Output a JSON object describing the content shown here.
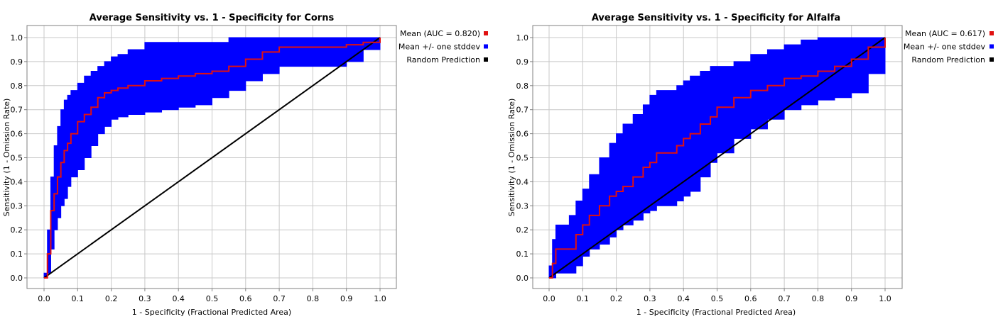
{
  "chart_data": [
    {
      "type": "area",
      "title": "Average Sensitivity vs. 1 - Specificity for Corns",
      "xlabel": "1 - Specificity (Fractional Predicted Area)",
      "ylabel": "Sensitivity (1 - Omission Rate)",
      "xlim": [
        0,
        1
      ],
      "ylim": [
        0,
        1
      ],
      "x_ticks": [
        "0.0",
        "0.1",
        "0.2",
        "0.3",
        "0.4",
        "0.5",
        "0.6",
        "0.7",
        "0.8",
        "0.9",
        "1.0"
      ],
      "y_ticks": [
        "0.0",
        "0.1",
        "0.2",
        "0.3",
        "0.4",
        "0.5",
        "0.6",
        "0.7",
        "0.8",
        "0.9",
        "1.0"
      ],
      "grid": true,
      "legend_position": "right",
      "series": [
        {
          "name": "Mean (AUC = 0.820)",
          "color": "#e01010",
          "x": [
            0.0,
            0.01,
            0.02,
            0.03,
            0.04,
            0.05,
            0.06,
            0.07,
            0.08,
            0.1,
            0.12,
            0.14,
            0.16,
            0.18,
            0.2,
            0.22,
            0.25,
            0.3,
            0.35,
            0.4,
            0.45,
            0.5,
            0.55,
            0.6,
            0.65,
            0.7,
            0.75,
            0.8,
            0.85,
            0.9,
            0.95,
            1.0
          ],
          "y": [
            0.0,
            0.1,
            0.28,
            0.35,
            0.42,
            0.48,
            0.53,
            0.56,
            0.6,
            0.65,
            0.68,
            0.71,
            0.75,
            0.77,
            0.78,
            0.79,
            0.8,
            0.82,
            0.83,
            0.84,
            0.85,
            0.86,
            0.88,
            0.91,
            0.94,
            0.96,
            0.96,
            0.96,
            0.96,
            0.97,
            0.98,
            1.0
          ]
        },
        {
          "name": "Mean +/- one stddev",
          "color": "#0000ff",
          "x": [
            0.0,
            0.01,
            0.02,
            0.03,
            0.04,
            0.05,
            0.06,
            0.07,
            0.08,
            0.1,
            0.12,
            0.14,
            0.16,
            0.18,
            0.2,
            0.22,
            0.25,
            0.3,
            0.35,
            0.4,
            0.45,
            0.5,
            0.55,
            0.6,
            0.65,
            0.7,
            0.75,
            0.8,
            0.85,
            0.9,
            0.95,
            1.0
          ],
          "upper": [
            0.02,
            0.2,
            0.42,
            0.55,
            0.63,
            0.7,
            0.74,
            0.76,
            0.78,
            0.81,
            0.84,
            0.86,
            0.88,
            0.9,
            0.92,
            0.93,
            0.95,
            0.98,
            0.98,
            0.98,
            0.98,
            0.98,
            1.0,
            1.0,
            1.0,
            1.0,
            1.0,
            1.0,
            1.0,
            1.0,
            1.0,
            1.0
          ],
          "lower": [
            0.0,
            0.02,
            0.12,
            0.2,
            0.25,
            0.3,
            0.33,
            0.38,
            0.42,
            0.45,
            0.5,
            0.55,
            0.6,
            0.63,
            0.66,
            0.67,
            0.68,
            0.69,
            0.7,
            0.71,
            0.72,
            0.75,
            0.78,
            0.82,
            0.85,
            0.88,
            0.88,
            0.88,
            0.88,
            0.9,
            0.95,
            1.0
          ]
        },
        {
          "name": "Random Prediction",
          "color": "#000000",
          "x": [
            0,
            1
          ],
          "y": [
            0,
            1
          ]
        }
      ]
    },
    {
      "type": "area",
      "title": "Average Sensitivity vs. 1 - Specificity for Alfalfa",
      "xlabel": "1 - Specificity (Fractional Predicted Area)",
      "ylabel": "Sensitivity (1 - Omission Rate)",
      "xlim": [
        0,
        1
      ],
      "ylim": [
        0,
        1
      ],
      "x_ticks": [
        "0.0",
        "0.1",
        "0.2",
        "0.3",
        "0.4",
        "0.5",
        "0.6",
        "0.7",
        "0.8",
        "0.9",
        "1.0"
      ],
      "y_ticks": [
        "0.0",
        "0.1",
        "0.2",
        "0.3",
        "0.4",
        "0.5",
        "0.6",
        "0.7",
        "0.8",
        "0.9",
        "1.0"
      ],
      "grid": true,
      "legend_position": "right",
      "series": [
        {
          "name": "Mean (AUC = 0.617)",
          "color": "#e01010",
          "x": [
            0.0,
            0.01,
            0.02,
            0.04,
            0.06,
            0.08,
            0.1,
            0.12,
            0.15,
            0.18,
            0.2,
            0.22,
            0.25,
            0.28,
            0.3,
            0.32,
            0.35,
            0.38,
            0.4,
            0.42,
            0.45,
            0.48,
            0.5,
            0.55,
            0.6,
            0.65,
            0.7,
            0.75,
            0.8,
            0.85,
            0.9,
            0.95,
            1.0
          ],
          "y": [
            0.0,
            0.06,
            0.12,
            0.12,
            0.12,
            0.18,
            0.22,
            0.26,
            0.3,
            0.34,
            0.36,
            0.38,
            0.42,
            0.46,
            0.48,
            0.52,
            0.52,
            0.55,
            0.58,
            0.6,
            0.64,
            0.67,
            0.71,
            0.75,
            0.78,
            0.8,
            0.83,
            0.84,
            0.86,
            0.88,
            0.91,
            0.96,
            1.0
          ]
        },
        {
          "name": "Mean +/- one stddev",
          "color": "#0000ff",
          "x": [
            0.0,
            0.01,
            0.02,
            0.04,
            0.06,
            0.08,
            0.1,
            0.12,
            0.15,
            0.18,
            0.2,
            0.22,
            0.25,
            0.28,
            0.3,
            0.32,
            0.35,
            0.38,
            0.4,
            0.42,
            0.45,
            0.48,
            0.5,
            0.55,
            0.6,
            0.65,
            0.7,
            0.75,
            0.8,
            0.85,
            0.9,
            0.95,
            1.0
          ],
          "upper": [
            0.05,
            0.16,
            0.22,
            0.22,
            0.26,
            0.32,
            0.37,
            0.43,
            0.5,
            0.56,
            0.6,
            0.64,
            0.68,
            0.72,
            0.76,
            0.78,
            0.78,
            0.8,
            0.82,
            0.84,
            0.86,
            0.88,
            0.88,
            0.9,
            0.93,
            0.95,
            0.97,
            0.99,
            1.0,
            1.0,
            1.0,
            1.0,
            1.0
          ],
          "lower": [
            0.0,
            0.0,
            0.02,
            0.02,
            0.02,
            0.05,
            0.09,
            0.12,
            0.14,
            0.17,
            0.2,
            0.22,
            0.24,
            0.27,
            0.28,
            0.3,
            0.3,
            0.32,
            0.34,
            0.36,
            0.42,
            0.48,
            0.52,
            0.58,
            0.62,
            0.66,
            0.7,
            0.72,
            0.74,
            0.75,
            0.77,
            0.85,
            1.0
          ]
        },
        {
          "name": "Random Prediction",
          "color": "#000000",
          "x": [
            0,
            1
          ],
          "y": [
            0,
            1
          ]
        }
      ]
    }
  ]
}
